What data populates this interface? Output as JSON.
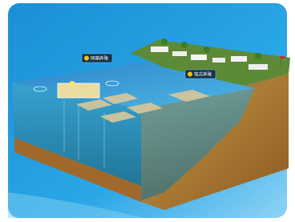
{
  "labels": [
    {
      "text": "网箱养殖"
    },
    {
      "text": "筏式养殖"
    }
  ]
}
